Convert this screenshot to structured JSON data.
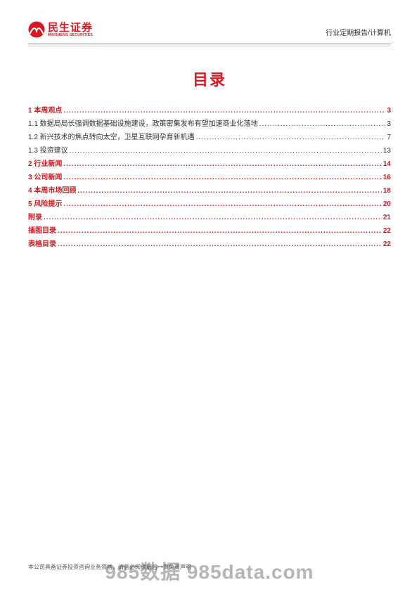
{
  "brand": {
    "name_cn": "民生证券",
    "name_en": "MINSHENG SECURITIES",
    "color": "#d51921"
  },
  "header": {
    "right_text": "行业定期报告/计算机"
  },
  "title": "目录",
  "toc": [
    {
      "level": 1,
      "label": "1 本周观点",
      "page": "3"
    },
    {
      "level": 2,
      "label": "1.1 数据局局长强调数据基础设施建设，政策密集发布有望加速商业化落地",
      "page": "3"
    },
    {
      "level": 2,
      "label": "1.2 新兴技术的焦点转向太空，卫星互联网孕育新机遇",
      "page": "7"
    },
    {
      "level": 2,
      "label": "1.3 投资建议",
      "page": "13"
    },
    {
      "level": 1,
      "label": "2 行业新闻",
      "page": "14"
    },
    {
      "level": 1,
      "label": "3 公司新闻",
      "page": "16"
    },
    {
      "level": 1,
      "label": "4 本周市场回顾",
      "page": "18"
    },
    {
      "level": 1,
      "label": "5 风险提示",
      "page": "20"
    },
    {
      "level": 1,
      "label": "附录",
      "page": "21"
    },
    {
      "level": 1,
      "label": "插图目录",
      "page": "22"
    },
    {
      "level": 1,
      "label": "表格目录",
      "page": "22"
    }
  ],
  "footer": {
    "disclaimer": "本公司具备证券投资咨询业务资格，请务必阅读最后一页免责声明",
    "right_text": "证券研究报告"
  },
  "watermark": "985数据 985data.com"
}
